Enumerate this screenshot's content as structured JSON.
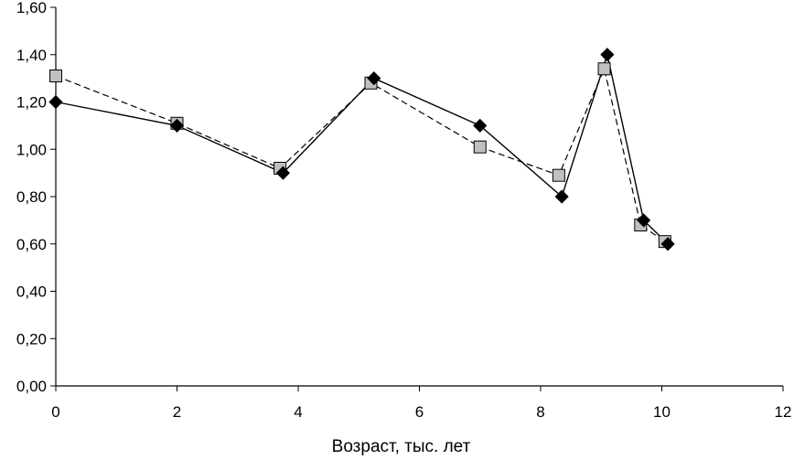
{
  "chart_data": {
    "type": "line",
    "title": "",
    "xlabel": "Возраст, тыс. лет",
    "ylabel": "",
    "xlim": [
      0,
      12
    ],
    "ylim": [
      0,
      1.6
    ],
    "x_ticks": [
      "0",
      "2",
      "4",
      "6",
      "8",
      "10",
      "12"
    ],
    "y_ticks": [
      "0,00",
      "0,20",
      "0,40",
      "0,60",
      "0,80",
      "1,00",
      "1,20",
      "1,40",
      "1,60"
    ],
    "grid": false,
    "legend": "none",
    "series": [
      {
        "marker": "diamond",
        "line_style": "solid",
        "marker_color": "#000000",
        "line_color": "#000000",
        "points": [
          {
            "x": 0.0,
            "y": 1.2
          },
          {
            "x": 2.0,
            "y": 1.1
          },
          {
            "x": 3.75,
            "y": 0.9
          },
          {
            "x": 5.25,
            "y": 1.3
          },
          {
            "x": 7.0,
            "y": 1.1
          },
          {
            "x": 8.35,
            "y": 0.8
          },
          {
            "x": 9.1,
            "y": 1.4
          },
          {
            "x": 9.7,
            "y": 0.7
          },
          {
            "x": 10.1,
            "y": 0.6
          }
        ]
      },
      {
        "marker": "square",
        "line_style": "dashed",
        "marker_color": "#c0c0c0",
        "line_color": "#000000",
        "points": [
          {
            "x": 0.0,
            "y": 1.31
          },
          {
            "x": 2.0,
            "y": 1.11
          },
          {
            "x": 3.7,
            "y": 0.92
          },
          {
            "x": 5.2,
            "y": 1.28
          },
          {
            "x": 7.0,
            "y": 1.01
          },
          {
            "x": 8.3,
            "y": 0.89
          },
          {
            "x": 9.05,
            "y": 1.34
          },
          {
            "x": 9.65,
            "y": 0.68
          },
          {
            "x": 10.05,
            "y": 0.61
          }
        ]
      }
    ]
  }
}
